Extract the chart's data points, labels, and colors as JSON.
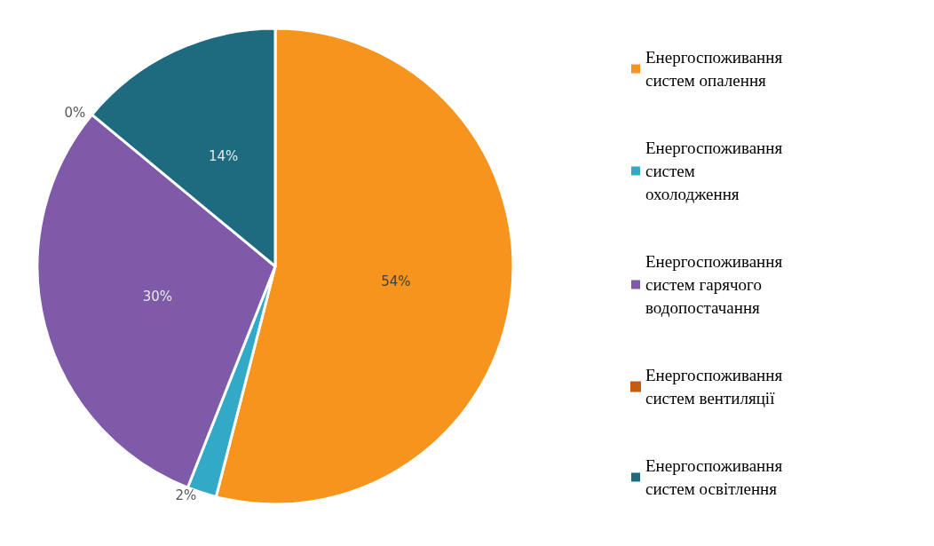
{
  "chart_data": {
    "type": "pie",
    "categories": [
      "Енергоспоживання систем опалення",
      "Енергоспоживання систем охолодження",
      "Енергоспоживання систем гарячого водопостачання",
      "Енергоспоживання систем вентиляції",
      "Енергоспоживання систем освітлення"
    ],
    "values": [
      54,
      2,
      30,
      0,
      14
    ],
    "colors": [
      "#f7941d",
      "#31a9c7",
      "#7e5aa8",
      "#c55a11",
      "#1e6b80"
    ],
    "value_labels": [
      "54%",
      "2%",
      "30%",
      "0%",
      "14%"
    ],
    "legend": "right"
  }
}
